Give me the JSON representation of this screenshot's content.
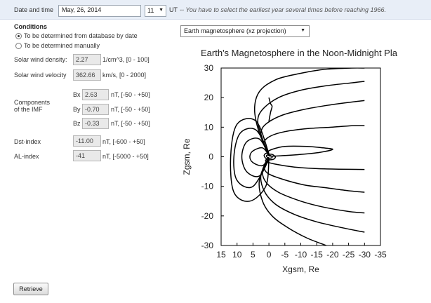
{
  "top": {
    "date_time_label": "Date and time",
    "date_value": "May, 26, 2014",
    "hour_value": "11",
    "ut_label": "UT",
    "note": "-- You have to select the earliest year several times before reaching 1966."
  },
  "conditions": {
    "title": "Conditions",
    "options": [
      {
        "label": "To be determined from database by date",
        "selected": true
      },
      {
        "label": "To be determined manually",
        "selected": false
      }
    ]
  },
  "params": {
    "sw_density": {
      "label": "Solar wind density:",
      "value": "2.27",
      "range": "1/cm^3, [0 - 100]"
    },
    "sw_velocity": {
      "label": "Solar wind velocity",
      "value": "362.66",
      "range": "km/s, [0 - 2000]"
    },
    "imf": {
      "label_line1": "Components",
      "label_line2": "of the IMF",
      "bx": {
        "label": "Bx",
        "value": "2.63",
        "range": "nT, [-50 - +50]"
      },
      "by": {
        "label": "By",
        "value": "-0.70",
        "range": "nT, [-50 - +50]"
      },
      "bz": {
        "label": "Bz",
        "value": "-0.33",
        "range": "nT, [-50 - +50]"
      }
    },
    "dst": {
      "label": "Dst-index",
      "value": "-11.00",
      "range": "nT, [-600 - +50]"
    },
    "al": {
      "label": "AL-index",
      "value": "-41",
      "range": "nT, [-5000 - +50]"
    }
  },
  "plot_select": {
    "value": "Earth magnetosphere (xz projection)"
  },
  "retrieve_label": "Retrieve",
  "chart_data": {
    "type": "line",
    "title": "Earth's Magnetosphere in the Noon-Midnight Pla",
    "xlabel": "Xgsm, Re",
    "ylabel": "Zgsm, Re",
    "xlim": [
      15,
      -35
    ],
    "ylim": [
      -30,
      30
    ],
    "xticks": [
      15,
      10,
      5,
      0,
      -5,
      -10,
      -15,
      -20,
      -25,
      -30,
      -35
    ],
    "yticks": [
      30,
      20,
      10,
      0,
      -10,
      -20,
      -30
    ],
    "grid": false,
    "series": [
      {
        "x": [
          0,
          3,
          4.5,
          3,
          -2,
          -9,
          -17,
          -26,
          -30
        ],
        "y": [
          1,
          8,
          16,
          22,
          26,
          28,
          29.5,
          30,
          30
        ]
      },
      {
        "x": [
          0,
          2,
          3.5,
          2,
          -3,
          -10,
          -18,
          -26,
          -30
        ],
        "y": [
          0.8,
          6,
          12,
          16,
          20,
          22.5,
          24,
          25,
          25.5
        ]
      },
      {
        "x": [
          0,
          1.5,
          2.5,
          1,
          -4,
          -11,
          -19,
          -26,
          -30
        ],
        "y": [
          0.6,
          4,
          8,
          11,
          14,
          16,
          17.5,
          18.5,
          19
        ]
      },
      {
        "x": [
          0,
          1,
          1.5,
          -0.5,
          -5,
          -12,
          -20,
          -26,
          -30
        ],
        "y": [
          0.4,
          2.5,
          5,
          7,
          8.5,
          9.5,
          10,
          10.5,
          10.5
        ]
      },
      {
        "x": [
          0,
          0.5,
          -1,
          -5,
          -12,
          -17,
          -20,
          -16,
          -10,
          -5,
          -1,
          0
        ],
        "y": [
          0.3,
          1.5,
          2.5,
          3.5,
          3.5,
          3,
          2.5,
          1.5,
          0.8,
          0.4,
          0.2,
          0.3
        ]
      },
      {
        "x": [
          0,
          1,
          -2,
          -8,
          -15,
          -22,
          -30
        ],
        "y": [
          -0.2,
          -1.5,
          -2.5,
          -3.5,
          -4,
          -4.2,
          -4.3
        ]
      },
      {
        "x": [
          0,
          1.5,
          0.5,
          -4,
          -11,
          -18,
          -25,
          -30
        ],
        "y": [
          -0.4,
          -3,
          -5.5,
          -7.5,
          -9.5,
          -10.5,
          -11.5,
          -12
        ]
      },
      {
        "x": [
          0,
          2,
          1,
          -3,
          -10,
          -17,
          -25,
          -30
        ],
        "y": [
          -0.6,
          -4.5,
          -8.5,
          -12,
          -15,
          -17,
          -18.5,
          -19
        ]
      },
      {
        "x": [
          0,
          2.5,
          1.5,
          -2,
          -8,
          -15,
          -23,
          -30
        ],
        "y": [
          -0.8,
          -6,
          -11.5,
          -16,
          -19.5,
          -22,
          -24,
          -25.5
        ]
      },
      {
        "x": [
          0,
          3,
          2,
          -1,
          -6,
          -12,
          -18
        ],
        "y": [
          -1,
          -8,
          -15,
          -20,
          -24,
          -27.5,
          -30
        ]
      },
      {
        "x": [
          0,
          -0.5,
          -1,
          -0.5,
          0
        ],
        "y": [
          20,
          18,
          17,
          15,
          12
        ]
      },
      {
        "x": [
          0,
          2,
          5,
          6,
          5,
          2,
          0
        ],
        "y": [
          0.5,
          3,
          2,
          0,
          -2,
          -3,
          -0.5
        ]
      },
      {
        "x": [
          0,
          3,
          7,
          8.5,
          7,
          3,
          0
        ],
        "y": [
          0.6,
          6,
          5,
          0,
          -5,
          -6.5,
          -0.6
        ]
      },
      {
        "x": [
          0,
          4,
          9,
          11,
          10,
          5,
          0
        ],
        "y": [
          0.8,
          9,
          8,
          0,
          -8,
          -10,
          -0.8
        ]
      },
      {
        "x": [
          0,
          4,
          10,
          12,
          11,
          6,
          1,
          0
        ],
        "y": [
          1,
          12,
          11,
          0,
          -12,
          -15,
          -10,
          -1
        ]
      },
      {
        "x": [
          0,
          0.8,
          1.5,
          1,
          0,
          -1.5,
          -2,
          -1,
          0
        ],
        "y": [
          0.8,
          1.2,
          0.5,
          -0.5,
          -1,
          -0.8,
          0,
          0.8,
          0.8
        ]
      },
      {
        "x": [
          0,
          0.4,
          0.8,
          0.5,
          0,
          -0.8,
          -1,
          -0.5,
          0
        ],
        "y": [
          0.4,
          0.6,
          0.3,
          -0.2,
          -0.5,
          -0.4,
          0,
          0.4,
          0.4
        ]
      }
    ]
  }
}
